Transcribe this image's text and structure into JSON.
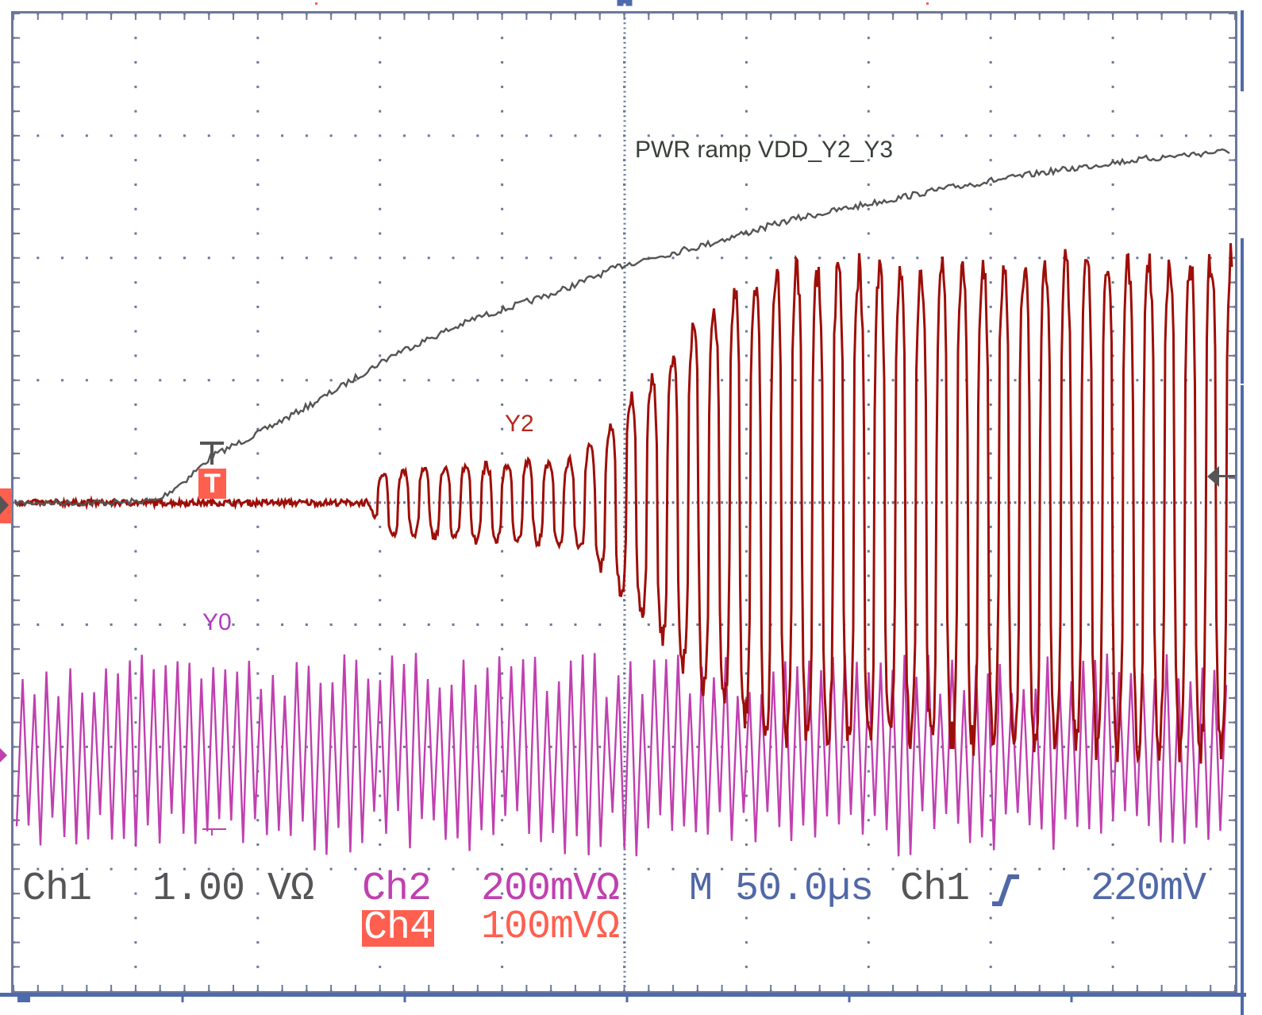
{
  "chart_data": {
    "type": "line",
    "grid": true,
    "x_unit": "µs",
    "timebase_per_div": 50,
    "xlim": [
      -81,
      418
    ],
    "trigger_time": 0,
    "series": [
      {
        "name": "PWR ramp VDD_Y2_Y3",
        "channel": "Ch1",
        "color": "#555555",
        "volts_per_div": 1.0,
        "unit": "V",
        "points": [
          [
            -81,
            0
          ],
          [
            -40,
            0
          ],
          [
            -22,
            0.02
          ],
          [
            -10,
            0.2
          ],
          [
            0,
            0.38
          ],
          [
            20,
            0.58
          ],
          [
            43,
            0.83
          ],
          [
            75,
            1.22
          ],
          [
            108,
            1.51
          ],
          [
            141,
            1.72
          ],
          [
            169,
            1.95
          ],
          [
            200,
            2.1
          ],
          [
            238,
            2.32
          ],
          [
            270,
            2.45
          ],
          [
            303,
            2.58
          ],
          [
            340,
            2.7
          ],
          [
            368,
            2.78
          ],
          [
            400,
            2.85
          ],
          [
            418,
            2.88
          ]
        ]
      },
      {
        "name": "Y2",
        "channel": "Ch4",
        "color": "#9e0e08",
        "volts_per_div": 0.1,
        "unit": "mV",
        "frequency_khz": 118,
        "envelope_amplitude": [
          [
            -81,
            0
          ],
          [
            63,
            0
          ],
          [
            70,
            25
          ],
          [
            150,
            35
          ],
          [
            160,
            55
          ],
          [
            170,
            80
          ],
          [
            185,
            110
          ],
          [
            200,
            150
          ],
          [
            230,
            190
          ],
          [
            418,
            200
          ]
        ]
      },
      {
        "name": "Y0",
        "channel": "Ch2",
        "color": "#c040b0",
        "volts_per_div": 0.2,
        "unit": "mV",
        "frequency_khz": 205,
        "amplitude": 168
      }
    ]
  },
  "labels": {
    "pwr": "PWR ramp VDD_Y2_Y3",
    "y2": "Y2",
    "y0": "Y0",
    "trigger_marker": "T"
  },
  "readout": {
    "ch1_name": "Ch1",
    "ch1_scale": "1.00 VΩ",
    "ch2_name": "Ch2",
    "ch2_scale": "200mVΩ",
    "ch4_name": "Ch4",
    "ch4_scale": "100mVΩ",
    "timebase": "M 50.0µs",
    "trig_source": "Ch1",
    "trig_slope_icon": "rising-edge-icon",
    "trig_level": "220mV"
  },
  "colors": {
    "graticule": "#6b7898",
    "frame_accent": "#4f6aab",
    "ch1": "#555555",
    "ch2": "#c040b0",
    "ch4": "#ff5f4f",
    "y2_trace": "#9e0e08",
    "timebase": "#5068a8"
  }
}
